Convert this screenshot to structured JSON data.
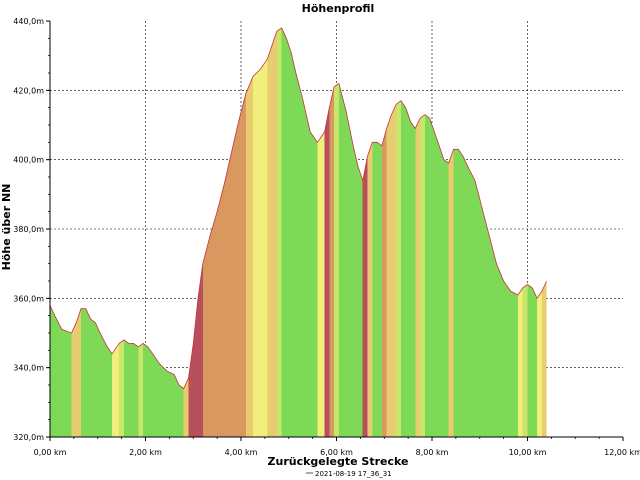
{
  "chart_data": {
    "type": "area",
    "title": "Höhenprofil",
    "xlabel": "Zurückgelegte Strecke",
    "ylabel": "Höhe über NN",
    "xlim": [
      0,
      12
    ],
    "ylim": [
      320,
      440
    ],
    "x_ticks": [
      0,
      2,
      4,
      6,
      8,
      10,
      12
    ],
    "x_tick_labels": [
      "0,00 km",
      "2,00 km",
      "4,00 km",
      "6,00 km",
      "8,00 km",
      "10,00 km",
      "12,00 km"
    ],
    "y_ticks": [
      320,
      340,
      360,
      380,
      400,
      420,
      440
    ],
    "y_tick_labels": [
      "320,0m",
      "340,0m",
      "360,0m",
      "380,0m",
      "400,0m",
      "420,0m",
      "440,0m"
    ],
    "grid": true,
    "legend": "bottom-center",
    "series": [
      {
        "name": "2021-08-19 17_36_31",
        "x": [
          0,
          0.1,
          0.25,
          0.45,
          0.55,
          0.65,
          0.75,
          0.85,
          0.95,
          1.05,
          1.2,
          1.3,
          1.45,
          1.55,
          1.65,
          1.75,
          1.85,
          1.95,
          2.05,
          2.15,
          2.3,
          2.45,
          2.6,
          2.7,
          2.8,
          2.9,
          3.0,
          3.1,
          3.2,
          3.35,
          3.5,
          3.65,
          3.8,
          3.95,
          4.1,
          4.25,
          4.4,
          4.55,
          4.65,
          4.75,
          4.85,
          4.95,
          5.05,
          5.15,
          5.3,
          5.45,
          5.6,
          5.75,
          5.85,
          5.95,
          6.05,
          6.2,
          6.35,
          6.45,
          6.55,
          6.65,
          6.75,
          6.85,
          6.95,
          7.05,
          7.15,
          7.25,
          7.35,
          7.45,
          7.55,
          7.65,
          7.75,
          7.85,
          7.95,
          8.05,
          8.15,
          8.25,
          8.35,
          8.45,
          8.55,
          8.65,
          8.75,
          8.9,
          9.05,
          9.2,
          9.35,
          9.5,
          9.65,
          9.8,
          9.9,
          10.0,
          10.1,
          10.2,
          10.3,
          10.4
        ],
        "y": [
          358,
          355,
          351,
          350,
          353,
          357,
          357,
          354,
          353,
          350,
          346,
          344,
          347,
          348,
          347,
          347,
          346,
          347,
          346,
          344,
          341,
          339,
          338,
          335,
          334,
          337,
          347,
          360,
          370,
          378,
          385,
          393,
          402,
          411,
          419,
          424,
          426,
          429,
          433,
          437,
          438,
          435,
          431,
          425,
          417,
          408,
          405,
          408,
          415,
          421,
          422,
          414,
          404,
          398,
          394,
          401,
          405,
          405,
          404,
          409,
          413,
          416,
          417,
          415,
          411,
          409,
          412,
          413,
          412,
          408,
          404,
          400,
          399,
          403,
          403,
          401,
          398,
          394,
          386,
          378,
          370,
          365,
          362,
          361,
          363,
          364,
          363,
          360,
          362,
          365
        ]
      }
    ]
  }
}
